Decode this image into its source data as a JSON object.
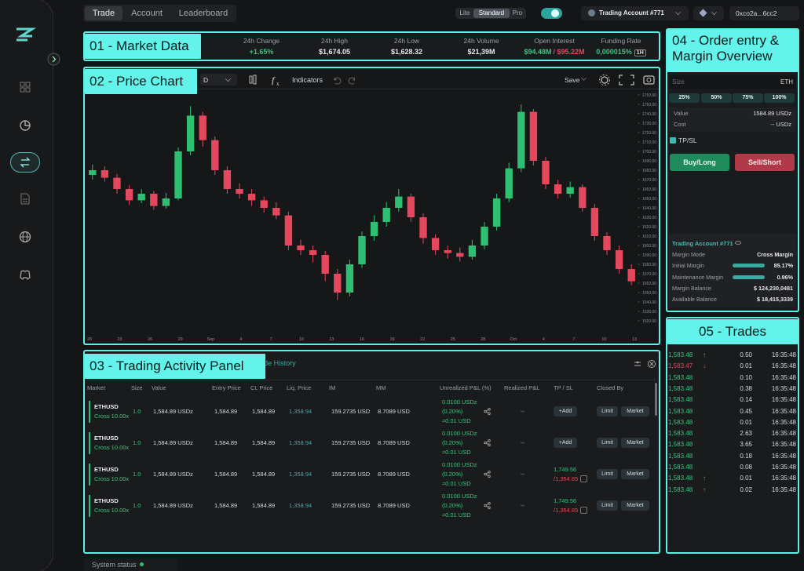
{
  "annotations": [
    "01 - Market Data",
    "02 - Price Chart",
    "03 - Trading Activity Panel",
    "04 - Order entry & Margin Overview",
    "05 - Trades"
  ],
  "nav": {
    "tabs": [
      "Trade",
      "Account",
      "Leaderboard"
    ],
    "modes": [
      "Lite",
      "Standard",
      "Pro"
    ],
    "account": "Trading Account #771",
    "wallet": "0xco2a...6cc2"
  },
  "market_data": [
    {
      "label": "24h Change",
      "value": "+1.65%",
      "color": "#3ec47f"
    },
    {
      "label": "24h High",
      "value": "$1,674.05"
    },
    {
      "label": "24h Low",
      "value": "$1,628.32"
    },
    {
      "label": "24h Volume",
      "value": "$21,39M"
    },
    {
      "label": "Open Interest",
      "value": "$94.48M",
      "color": "#3ec47f",
      "value2": "/ $95.22M",
      "color2": "#e5485d"
    },
    {
      "label": "Funding Rate",
      "value": "0,000015%",
      "color": "#3ec47f",
      "interval": "1H"
    }
  ],
  "price_chart": {
    "type": "candlestick",
    "interval": "D",
    "indicators": "Indicators",
    "save": "Save",
    "up_color": "#2fbf71",
    "down_color": "#e5485d",
    "ylim": [
      1520,
      1760
    ],
    "yticks": [
      {
        "value": 1760,
        "label": "1760.00"
      },
      {
        "value": 1750,
        "label": "1750.00"
      },
      {
        "value": 1740,
        "label": "1740.00"
      },
      {
        "value": 1730,
        "label": "1730.00"
      },
      {
        "value": 1720,
        "label": "1720.00"
      },
      {
        "value": 1710,
        "label": "1710.00"
      },
      {
        "value": 1700,
        "label": "1700.00"
      },
      {
        "value": 1690,
        "label": "1690.00"
      },
      {
        "value": 1680,
        "label": "1680.00"
      },
      {
        "value": 1670,
        "label": "1670.00"
      },
      {
        "value": 1660,
        "label": "1660.00"
      },
      {
        "value": 1650,
        "label": "1650.00"
      },
      {
        "value": 1640,
        "label": "1640.00"
      },
      {
        "value": 1630,
        "label": "1630.00"
      },
      {
        "value": 1620,
        "label": "1620.00"
      },
      {
        "value": 1610,
        "label": "1610.00"
      },
      {
        "value": 1600,
        "label": "1600.00"
      },
      {
        "value": 1590,
        "label": "1590.00"
      },
      {
        "value": 1580,
        "label": "1580.00"
      },
      {
        "value": 1570,
        "label": "1570.00"
      },
      {
        "value": 1560,
        "label": "1560.00"
      },
      {
        "value": 1550,
        "label": "1550.00"
      },
      {
        "value": 1540,
        "label": "1540.00"
      },
      {
        "value": 1530,
        "label": "1530.00"
      },
      {
        "value": 1520,
        "label": "1520.00"
      }
    ],
    "x_labels": [
      "20",
      "23",
      "26",
      "29",
      "Sep",
      "4",
      "7",
      "10",
      "13",
      "16",
      "19",
      "22",
      "25",
      "28",
      "Oct",
      "4",
      "7",
      "10",
      "13"
    ],
    "open": [
      1675,
      1680,
      1672,
      1660,
      1648,
      1655,
      1642,
      1650,
      1700,
      1738,
      1712,
      1680,
      1660,
      1655,
      1648,
      1640,
      1632,
      1600,
      1595,
      1590,
      1570,
      1550,
      1580,
      1610,
      1625,
      1640,
      1652,
      1630,
      1608,
      1595,
      1592,
      1588,
      1600,
      1620,
      1650,
      1682,
      1742,
      1690,
      1665,
      1655,
      1662,
      1640,
      1610,
      1595,
      1575
    ],
    "high": [
      1686,
      1684,
      1676,
      1664,
      1660,
      1658,
      1656,
      1704,
      1748,
      1742,
      1716,
      1684,
      1666,
      1660,
      1652,
      1646,
      1636,
      1606,
      1600,
      1594,
      1575,
      1585,
      1615,
      1632,
      1646,
      1660,
      1655,
      1634,
      1612,
      1600,
      1598,
      1606,
      1625,
      1655,
      1688,
      1750,
      1745,
      1694,
      1670,
      1668,
      1665,
      1644,
      1614,
      1600,
      1580
    ],
    "low": [
      1670,
      1668,
      1655,
      1643,
      1645,
      1638,
      1639,
      1648,
      1696,
      1705,
      1675,
      1655,
      1650,
      1642,
      1635,
      1628,
      1595,
      1590,
      1582,
      1562,
      1542,
      1546,
      1576,
      1605,
      1620,
      1636,
      1625,
      1602,
      1590,
      1586,
      1583,
      1585,
      1596,
      1616,
      1646,
      1678,
      1685,
      1660,
      1650,
      1651,
      1636,
      1605,
      1590,
      1570,
      1558
    ],
    "close": [
      1680,
      1672,
      1660,
      1648,
      1655,
      1642,
      1650,
      1700,
      1738,
      1712,
      1680,
      1660,
      1655,
      1648,
      1640,
      1632,
      1600,
      1595,
      1590,
      1570,
      1550,
      1580,
      1610,
      1625,
      1640,
      1652,
      1630,
      1608,
      1595,
      1592,
      1588,
      1600,
      1620,
      1650,
      1682,
      1742,
      1690,
      1665,
      1655,
      1662,
      1640,
      1610,
      1595,
      1575,
      1562
    ]
  },
  "activity": {
    "tab": "Trade History",
    "columns": [
      "Market",
      "Size",
      "Value",
      "Entry Price",
      "CL Price",
      "Liq. Price",
      "IM",
      "MM",
      "Unrealized P&L (%)",
      "Realized P&L",
      "TP / SL",
      "Closed By"
    ],
    "rows": [
      {
        "market": "ETHUSD",
        "leverage": "Cross 10.00x",
        "size": "1.0",
        "value": "1,584.89 USDz",
        "entry": "1,584.89",
        "cl": "1,584.89",
        "liq": "1,358.94",
        "im": "159.2735 USD",
        "mm": "8.7089 USD",
        "upnl": "0.0100 USDz",
        "upnl_pct": "(0.20%)",
        "upnl_usd": "≈0.01 USD",
        "rpnl": "--",
        "tpsl": {
          "add": "+Add"
        },
        "closed_by": [
          "Limit",
          "Market"
        ]
      },
      {
        "market": "ETHUSD",
        "leverage": "Cross 10.00x",
        "size": "1.0",
        "value": "1,584.89 USDz",
        "entry": "1,584.89",
        "cl": "1,584.89",
        "liq": "1,358.94",
        "im": "159.2735 USD",
        "mm": "8.7089 USD",
        "upnl": "0.0100 USDz",
        "upnl_pct": "(0.20%)",
        "upnl_usd": "≈0.01 USD",
        "rpnl": "--",
        "tpsl": {
          "add": "+Add"
        },
        "closed_by": [
          "Limit",
          "Market"
        ]
      },
      {
        "market": "ETHUSD",
        "leverage": "Cross 10.00x",
        "size": "1.0",
        "value": "1,584.89 USDz",
        "entry": "1,584.89",
        "cl": "1,584.89",
        "liq": "1,358.94",
        "im": "159.2735 USD",
        "mm": "8.7089 USD",
        "upnl": "0.0100 USDz",
        "upnl_pct": "(0.20%)",
        "upnl_usd": "≈0.01 USD",
        "rpnl": "--",
        "tpsl": {
          "tp": "1,749.56",
          "sl": "/1,354.85"
        },
        "closed_by": [
          "Limit",
          "Market"
        ]
      },
      {
        "market": "ETHUSD",
        "leverage": "Cross 10.00x",
        "size": "1.0",
        "value": "1,584.89 USDz",
        "entry": "1,584.89",
        "cl": "1,584.89",
        "liq": "1,358.94",
        "im": "159.2735 USD",
        "mm": "8.7089 USD",
        "upnl": "0.0100 USDz",
        "upnl_pct": "(0.20%)",
        "upnl_usd": "≈0.01 USD",
        "rpnl": "--",
        "tpsl": {
          "tp": "1,749.56",
          "sl": "/1,354.85"
        },
        "closed_by": [
          "Limit",
          "Market"
        ]
      }
    ]
  },
  "order_entry": {
    "size_placeholder": "Size",
    "size_unit": "ETH",
    "percents": [
      "25%",
      "50%",
      "75%",
      "100%"
    ],
    "value_label": "Value",
    "value": "1584.89 USDz",
    "cost_label": "Cost",
    "cost": "-- USDz",
    "tpsl": "TP/SL",
    "buy": "Buy/Long",
    "sell": "Sell/Short",
    "account": {
      "title": "Trading Account #771",
      "rows": [
        {
          "label": "Margin Mode",
          "value": "Cross Margin"
        },
        {
          "label": "Initial Margin",
          "value": "85.17%"
        },
        {
          "label": "Maintenance Margin",
          "value": "0.96%"
        },
        {
          "label": "Margin Balance",
          "value": "$ 124,230,0481"
        },
        {
          "label": "Available Balance",
          "value": "$ 18,415,3339"
        }
      ]
    }
  },
  "trades": [
    {
      "price": "1,583.48",
      "dir": "↑",
      "size": "0.50",
      "time": "16:35:48"
    },
    {
      "price": "1,583.47",
      "dir": "↓",
      "size": "0.01",
      "time": "16:35:48"
    },
    {
      "price": "1,583.48",
      "dir": null,
      "size": "0.10",
      "time": "16:35:48"
    },
    {
      "price": "1,583.48",
      "dir": null,
      "size": "0.38",
      "time": "16:35:48"
    },
    {
      "price": "1,583.48",
      "dir": null,
      "size": "0.14",
      "time": "16:35:48"
    },
    {
      "price": "1,583.48",
      "dir": null,
      "size": "0.45",
      "time": "16:35:48"
    },
    {
      "price": "1,583.48",
      "dir": null,
      "size": "0.01",
      "time": "16:35:48"
    },
    {
      "price": "1,583.48",
      "dir": null,
      "size": "2.63",
      "time": "16:35:48"
    },
    {
      "price": "1,583.48",
      "dir": null,
      "size": "3.65",
      "time": "16:35:48"
    },
    {
      "price": "1,583.48",
      "dir": null,
      "size": "0.18",
      "time": "16:35:48"
    },
    {
      "price": "1,583.48",
      "dir": null,
      "size": "0.08",
      "time": "16:35:48"
    },
    {
      "price": "1,583.48",
      "dir": "↑",
      "size": "0.01",
      "time": "16:35:48"
    },
    {
      "price": "1,583.48",
      "dir": "↑",
      "size": "0.02",
      "time": "16:35:48"
    }
  ],
  "status": "System status"
}
